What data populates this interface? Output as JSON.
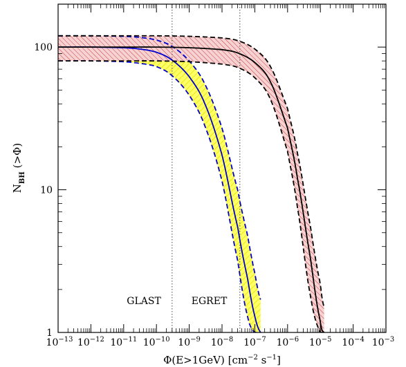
{
  "chart_data": {
    "type": "line",
    "title": "",
    "xlabel": {
      "main": "Φ(E>1GeV)  [cm",
      "exp1": "−2",
      "mid": " s",
      "exp2": "−1",
      "end": "]"
    },
    "ylabel": {
      "main": "N",
      "sub": "BH",
      "end": " (>Φ)"
    },
    "x_scale": "log",
    "y_scale": "log",
    "xlim": [
      1e-13,
      0.001
    ],
    "ylim": [
      1,
      200
    ],
    "x_ticks": [
      {
        "value": 1e-13,
        "base": "10",
        "exp": "−13"
      },
      {
        "value": 1e-12,
        "base": "10",
        "exp": "−12"
      },
      {
        "value": 1e-11,
        "base": "10",
        "exp": "−11"
      },
      {
        "value": 1e-10,
        "base": "10",
        "exp": "−10"
      },
      {
        "value": 1e-09,
        "base": "10",
        "exp": "−9"
      },
      {
        "value": 1e-08,
        "base": "10",
        "exp": "−8"
      },
      {
        "value": 1e-07,
        "base": "10",
        "exp": "−7"
      },
      {
        "value": 1e-06,
        "base": "10",
        "exp": "−6"
      },
      {
        "value": 1e-05,
        "base": "10",
        "exp": "−5"
      },
      {
        "value": 0.0001,
        "base": "10",
        "exp": "−4"
      },
      {
        "value": 0.001,
        "base": "10",
        "exp": "−3"
      }
    ],
    "y_ticks": [
      {
        "value": 1,
        "label": "1"
      },
      {
        "value": 10,
        "label": "10"
      },
      {
        "value": 100,
        "label": "100"
      }
    ],
    "grid": false,
    "thresholds": [
      {
        "label": "GLAST",
        "value": 3e-10
      },
      {
        "label": "EGRET",
        "value": 3.5e-08
      }
    ],
    "series": [
      {
        "color": "#0000cc",
        "band_fill": "#ffff00",
        "x": [
          1e-13,
          1e-12,
          1e-11,
          3e-11,
          1e-10,
          3e-10,
          1e-09,
          3e-09,
          1e-08,
          3e-08,
          6e-08,
          1e-07,
          1.5e-07
        ],
        "y": [
          100,
          100,
          99,
          97,
          92,
          81,
          62,
          40,
          17.5,
          5.5,
          2.4,
          1.3,
          1.0
        ],
        "upper": [
          120,
          120,
          119,
          117,
          112,
          101,
          80,
          55,
          27,
          10,
          4.8,
          2.6,
          1.7
        ],
        "lower": [
          80,
          80,
          79,
          77,
          73,
          63,
          46,
          28,
          11.5,
          3.2,
          1.3,
          1.0,
          1.0
        ]
      },
      {
        "color": "#000000",
        "band_fill": "#e8a0a0",
        "x": [
          1e-13,
          1e-11,
          1e-10,
          1e-09,
          1e-08,
          3e-08,
          1e-07,
          3e-07,
          1e-06,
          2e-06,
          5e-06,
          1e-05,
          1.3e-05
        ],
        "y": [
          100,
          100,
          100,
          99,
          96,
          91,
          78,
          57,
          27,
          12,
          3.3,
          1.2,
          1.0
        ],
        "upper": [
          120,
          120,
          120,
          119,
          116,
          111,
          97,
          73,
          37,
          18,
          5.5,
          2.2,
          1.5
        ],
        "lower": [
          80,
          80,
          80,
          79,
          76,
          72,
          61,
          43,
          18.5,
          7.5,
          1.8,
          1.0,
          1.0
        ]
      }
    ]
  }
}
